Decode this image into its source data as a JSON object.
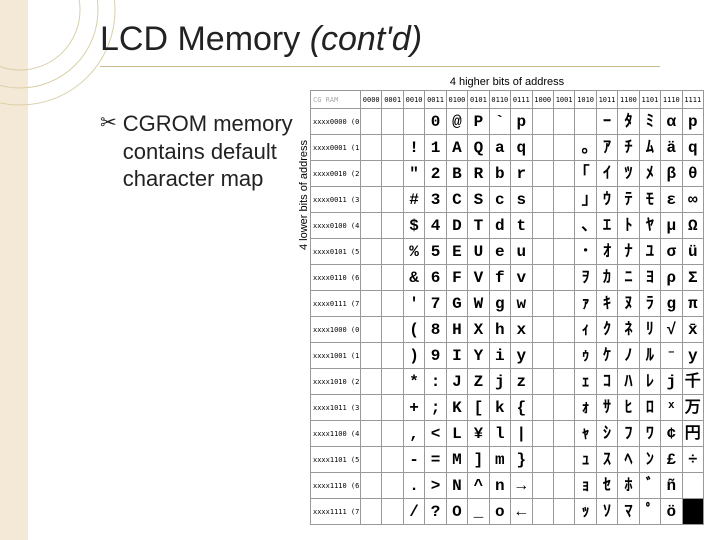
{
  "title_plain": "LCD Memory ",
  "title_italic": "(cont'd)",
  "bullet_label": "CGROM ",
  "bullet_rest": "memory contains default character map",
  "top_caption": "4 higher bits of address",
  "left_caption": "4 lower bits of address",
  "col_headers": [
    "0000",
    "0001",
    "0010",
    "0011",
    "0100",
    "0101",
    "0110",
    "0111",
    "1000",
    "1001",
    "1010",
    "1011",
    "1100",
    "1101",
    "1110",
    "1111"
  ],
  "corner_label": "CG RAM",
  "row_headers": [
    "xxxx0000  (0)",
    "xxxx0001  (1)",
    "xxxx0010  (2)",
    "xxxx0011  (3)",
    "xxxx0100  (4)",
    "xxxx0101  (5)",
    "xxxx0110  (6)",
    "xxxx0111  (7)",
    "xxxx1000  (0)",
    "xxxx1001  (1)",
    "xxxx1010  (2)",
    "xxxx1011  (3)",
    "xxxx1100  (4)",
    "xxxx1101  (5)",
    "xxxx1110  (6)",
    "xxxx1111  (7)"
  ],
  "grid": [
    [
      "",
      "",
      " ",
      "0",
      "@",
      "P",
      "`",
      "p",
      "",
      "",
      " ",
      "ｰ",
      "ﾀ",
      "ﾐ",
      "α",
      "p"
    ],
    [
      "",
      "",
      "!",
      "1",
      "A",
      "Q",
      "a",
      "q",
      "",
      "",
      "｡",
      "ｱ",
      "ﾁ",
      "ﾑ",
      "ä",
      "q"
    ],
    [
      "",
      "",
      "\"",
      "2",
      "B",
      "R",
      "b",
      "r",
      "",
      "",
      "｢",
      "ｲ",
      "ﾂ",
      "ﾒ",
      "β",
      "θ"
    ],
    [
      "",
      "",
      "#",
      "3",
      "C",
      "S",
      "c",
      "s",
      "",
      "",
      "｣",
      "ｳ",
      "ﾃ",
      "ﾓ",
      "ε",
      "∞"
    ],
    [
      "",
      "",
      "$",
      "4",
      "D",
      "T",
      "d",
      "t",
      "",
      "",
      "､",
      "ｴ",
      "ﾄ",
      "ﾔ",
      "μ",
      "Ω"
    ],
    [
      "",
      "",
      "%",
      "5",
      "E",
      "U",
      "e",
      "u",
      "",
      "",
      "･",
      "ｵ",
      "ﾅ",
      "ﾕ",
      "σ",
      "ü"
    ],
    [
      "",
      "",
      "&",
      "6",
      "F",
      "V",
      "f",
      "v",
      "",
      "",
      "ｦ",
      "ｶ",
      "ﾆ",
      "ﾖ",
      "ρ",
      "Σ"
    ],
    [
      "",
      "",
      "'",
      "7",
      "G",
      "W",
      "g",
      "w",
      "",
      "",
      "ｧ",
      "ｷ",
      "ﾇ",
      "ﾗ",
      "g",
      "π"
    ],
    [
      "",
      "",
      "(",
      "8",
      "H",
      "X",
      "h",
      "x",
      "",
      "",
      "ｨ",
      "ｸ",
      "ﾈ",
      "ﾘ",
      "√",
      "x̄"
    ],
    [
      "",
      "",
      ")",
      "9",
      "I",
      "Y",
      "i",
      "y",
      "",
      "",
      "ｩ",
      "ｹ",
      "ﾉ",
      "ﾙ",
      "⁻",
      "y"
    ],
    [
      "",
      "",
      "*",
      ":",
      "J",
      "Z",
      "j",
      "z",
      "",
      "",
      "ｪ",
      "ｺ",
      "ﾊ",
      "ﾚ",
      "j",
      "千"
    ],
    [
      "",
      "",
      "+",
      ";",
      "K",
      "[",
      "k",
      "{",
      "",
      "",
      "ｫ",
      "ｻ",
      "ﾋ",
      "ﾛ",
      "ˣ",
      "万"
    ],
    [
      "",
      "",
      ",",
      "<",
      "L",
      "¥",
      "l",
      "|",
      "",
      "",
      "ｬ",
      "ｼ",
      "ﾌ",
      "ﾜ",
      "¢",
      "円"
    ],
    [
      "",
      "",
      "-",
      "=",
      "M",
      "]",
      "m",
      "}",
      "",
      "",
      "ｭ",
      "ｽ",
      "ﾍ",
      "ﾝ",
      "£",
      "÷"
    ],
    [
      "",
      "",
      ".",
      ">",
      "N",
      "^",
      "n",
      "→",
      "",
      "",
      "ｮ",
      "ｾ",
      "ﾎ",
      "ﾞ",
      "ñ",
      " "
    ],
    [
      "",
      "",
      "/",
      "?",
      "O",
      "_",
      "o",
      "←",
      "",
      "",
      "ｯ",
      "ｿ",
      "ﾏ",
      "ﾟ",
      "ö",
      "█"
    ]
  ],
  "colors": {
    "stripe": "#f4e9d6",
    "rule": "#c9b98e",
    "deco_stroke": "#d9cfa8"
  }
}
